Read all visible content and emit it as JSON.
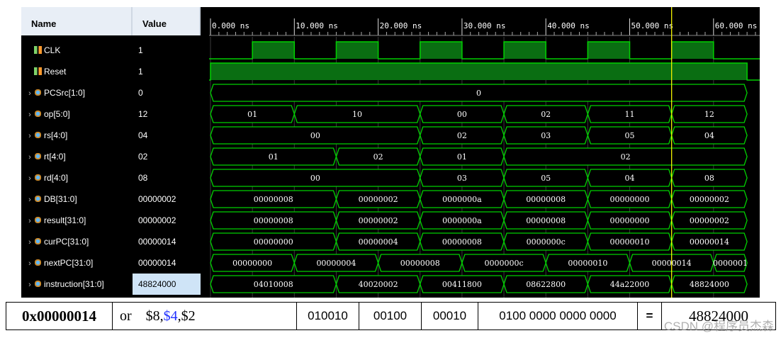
{
  "columns": {
    "name": "Name",
    "value": "Value"
  },
  "time_labels": [
    "0.000 ns",
    "10.000 ns",
    "20.000 ns",
    "30.000 ns",
    "40.000 ns",
    "50.000 ns",
    "60.000 ns"
  ],
  "cursor_time_ns": 55,
  "signals": [
    {
      "name": "CLK",
      "value": "1",
      "kind": "bit",
      "icon": "bit-signal-icon",
      "expandable": false
    },
    {
      "name": "Reset",
      "value": "1",
      "kind": "bit",
      "icon": "bit-signal-icon",
      "expandable": false
    },
    {
      "name": "PCSrc[1:0]",
      "value": "0",
      "kind": "bus",
      "icon": "bus-signal-icon",
      "expandable": true
    },
    {
      "name": "op[5:0]",
      "value": "12",
      "kind": "bus",
      "icon": "bus-signal-icon",
      "expandable": true
    },
    {
      "name": "rs[4:0]",
      "value": "04",
      "kind": "bus",
      "icon": "bus-signal-icon",
      "expandable": true
    },
    {
      "name": "rt[4:0]",
      "value": "02",
      "kind": "bus",
      "icon": "bus-signal-icon",
      "expandable": true
    },
    {
      "name": "rd[4:0]",
      "value": "08",
      "kind": "bus",
      "icon": "bus-signal-icon",
      "expandable": true
    },
    {
      "name": "DB[31:0]",
      "value": "00000002",
      "kind": "bus",
      "icon": "bus-signal-icon",
      "expandable": true
    },
    {
      "name": "result[31:0]",
      "value": "00000002",
      "kind": "bus",
      "icon": "bus-signal-icon",
      "expandable": true
    },
    {
      "name": "curPC[31:0]",
      "value": "00000014",
      "kind": "bus",
      "icon": "bus-signal-icon",
      "expandable": true
    },
    {
      "name": "nextPC[31:0]",
      "value": "00000014",
      "kind": "bus",
      "icon": "bus-signal-icon",
      "expandable": true
    },
    {
      "name": "instruction[31:0]",
      "value": "48824000",
      "kind": "bus",
      "icon": "instruction-signal-icon",
      "expandable": true,
      "selected": true
    }
  ],
  "waves": {
    "CLK": {
      "high": [
        [
          5,
          10
        ],
        [
          15,
          20
        ],
        [
          25,
          30
        ],
        [
          35,
          40
        ],
        [
          45,
          50
        ],
        [
          55,
          60
        ]
      ]
    },
    "Reset": {
      "high": [
        [
          0,
          64
        ]
      ]
    },
    "PCSrc[1:0]": [
      [
        0,
        64,
        "0"
      ]
    ],
    "op[5:0]": [
      [
        0,
        10,
        "01"
      ],
      [
        10,
        25,
        "10"
      ],
      [
        25,
        35,
        "00"
      ],
      [
        35,
        45,
        "02"
      ],
      [
        45,
        55,
        "11"
      ],
      [
        55,
        64,
        "12"
      ]
    ],
    "rs[4:0]": [
      [
        0,
        25,
        "00"
      ],
      [
        25,
        35,
        "02"
      ],
      [
        35,
        45,
        "03"
      ],
      [
        45,
        55,
        "05"
      ],
      [
        55,
        64,
        "04"
      ]
    ],
    "rt[4:0]": [
      [
        0,
        15,
        "01"
      ],
      [
        15,
        25,
        "02"
      ],
      [
        25,
        35,
        "01"
      ],
      [
        35,
        64,
        "02"
      ]
    ],
    "rd[4:0]": [
      [
        0,
        25,
        "00"
      ],
      [
        25,
        35,
        "03"
      ],
      [
        35,
        45,
        "05"
      ],
      [
        45,
        55,
        "04"
      ],
      [
        55,
        64,
        "08"
      ]
    ],
    "DB[31:0]": [
      [
        0,
        15,
        "00000008"
      ],
      [
        15,
        25,
        "00000002"
      ],
      [
        25,
        35,
        "0000000a"
      ],
      [
        35,
        45,
        "00000008"
      ],
      [
        45,
        55,
        "00000000"
      ],
      [
        55,
        64,
        "00000002"
      ]
    ],
    "result[31:0]": [
      [
        0,
        15,
        "00000008"
      ],
      [
        15,
        25,
        "00000002"
      ],
      [
        25,
        35,
        "0000000a"
      ],
      [
        35,
        45,
        "00000008"
      ],
      [
        45,
        55,
        "00000000"
      ],
      [
        55,
        64,
        "00000002"
      ]
    ],
    "curPC[31:0]": [
      [
        0,
        15,
        "00000000"
      ],
      [
        15,
        25,
        "00000004"
      ],
      [
        25,
        35,
        "00000008"
      ],
      [
        35,
        45,
        "0000000c"
      ],
      [
        45,
        55,
        "00000010"
      ],
      [
        55,
        64,
        "00000014"
      ]
    ],
    "nextPC[31:0]": [
      [
        0,
        10,
        "00000000"
      ],
      [
        10,
        20,
        "00000004"
      ],
      [
        20,
        30,
        "00000008"
      ],
      [
        30,
        40,
        "0000000c"
      ],
      [
        40,
        50,
        "00000010"
      ],
      [
        50,
        60,
        "00000014"
      ],
      [
        60,
        64,
        "0000001"
      ]
    ],
    "instruction[31:0]": [
      [
        0,
        15,
        "04010008"
      ],
      [
        15,
        25,
        "40020002"
      ],
      [
        25,
        35,
        "00411800"
      ],
      [
        35,
        45,
        "08622800"
      ],
      [
        45,
        55,
        "44a22000"
      ],
      [
        55,
        64,
        "48824000"
      ]
    ]
  },
  "colors": {
    "wave": "#00d000",
    "bit_fill": "#0a6e12",
    "cursor": "#f0f000",
    "grid": "#3a3a3a",
    "bus_text": "#ffffff"
  },
  "table": {
    "pc": "0x00000014",
    "instr_op": "or",
    "instr_reg_rd": "$8,",
    "instr_reg_rs": "$4",
    "instr_reg_rt": ",$2",
    "opcode_bits": "010010",
    "rs_bits": "00100",
    "rt_bits": "00010",
    "imm_bits": "0100 0000 0000 0000",
    "equals": "=",
    "hex": "48824000"
  },
  "watermark": "CSDN @程序员杰森"
}
